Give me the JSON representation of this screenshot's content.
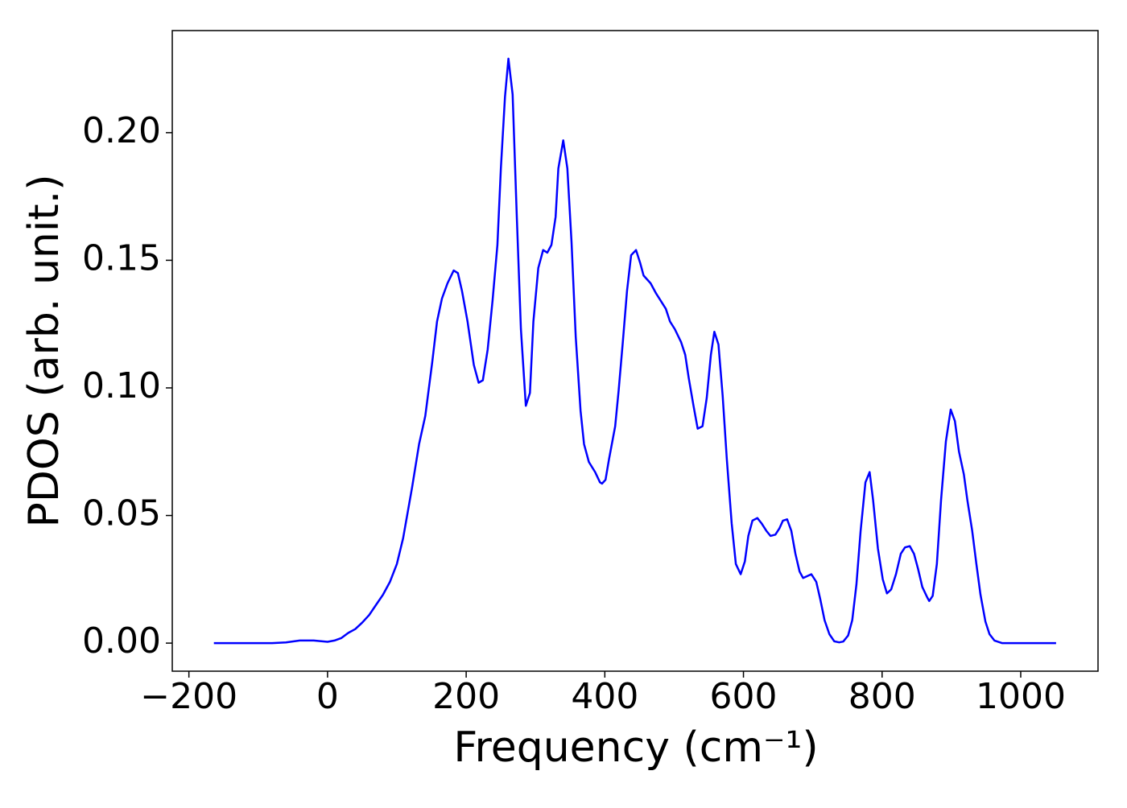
{
  "chart_data": {
    "type": "line",
    "xlabel": "Frequency (cm⁻¹)",
    "ylabel": "PDOS (arb. unit.)",
    "xlim": [
      -224,
      1111.5
    ],
    "ylim": [
      -0.011,
      0.24
    ],
    "xticks": [
      {
        "value": -200,
        "label": "−200"
      },
      0,
      200,
      400,
      600,
      800,
      1000
    ],
    "yticks": [
      {
        "value": 0,
        "label": "0.00"
      },
      {
        "value": 0.05,
        "label": "0.05"
      },
      {
        "value": 0.1,
        "label": "0.10"
      },
      {
        "value": 0.15,
        "label": "0.15"
      },
      {
        "value": 0.2,
        "label": "0.20"
      }
    ],
    "series": [
      {
        "color": "#0000ff",
        "x": [
          -164,
          -120,
          -80,
          -60,
          -40,
          -20,
          0,
          10,
          20,
          30,
          40,
          50,
          60,
          70,
          80,
          90,
          100,
          109,
          122,
          132,
          141,
          151,
          158,
          165,
          173,
          182,
          188,
          194,
          202,
          211,
          218,
          224,
          231,
          238,
          245,
          250,
          256,
          261,
          267,
          273,
          279,
          286,
          292,
          297,
          304,
          311,
          317,
          323,
          329,
          333,
          340,
          346,
          352,
          358,
          365,
          370,
          377,
          386,
          393,
          396,
          401,
          406,
          415,
          420,
          426,
          432,
          438,
          445,
          451,
          456,
          466,
          474,
          481,
          488,
          494,
          501,
          510,
          516,
          521,
          528,
          534,
          541,
          547,
          553,
          558,
          564,
          570,
          576,
          583,
          589,
          596,
          602,
          607,
          613,
          620,
          626,
          633,
          639,
          646,
          652,
          657,
          663,
          669,
          675,
          681,
          686,
          698,
          705,
          711,
          717,
          724,
          731,
          738,
          744,
          751,
          757,
          763,
          769,
          776,
          782,
          787,
          794,
          801,
          807,
          813,
          820,
          827,
          833,
          840,
          846,
          852,
          858,
          865,
          868,
          873,
          879,
          885,
          892,
          899,
          905,
          911,
          918,
          923,
          930,
          936,
          942,
          949,
          955,
          962,
          973,
          1051
        ],
        "values": [
          0,
          0,
          0,
          0.0003,
          0.001,
          0.001,
          0.0005,
          0.001,
          0.002,
          0.004,
          0.0055,
          0.008,
          0.011,
          0.015,
          0.019,
          0.024,
          0.031,
          0.041,
          0.061,
          0.078,
          0.089,
          0.11,
          0.126,
          0.135,
          0.141,
          0.146,
          0.145,
          0.138,
          0.126,
          0.109,
          0.102,
          0.103,
          0.115,
          0.134,
          0.156,
          0.186,
          0.214,
          0.229,
          0.215,
          0.167,
          0.123,
          0.093,
          0.098,
          0.126,
          0.147,
          0.154,
          0.153,
          0.156,
          0.167,
          0.186,
          0.197,
          0.186,
          0.157,
          0.12,
          0.091,
          0.078,
          0.071,
          0.067,
          0.063,
          0.0625,
          0.064,
          0.072,
          0.085,
          0.099,
          0.118,
          0.138,
          0.152,
          0.154,
          0.149,
          0.144,
          0.141,
          0.137,
          0.134,
          0.131,
          0.126,
          0.123,
          0.118,
          0.113,
          0.104,
          0.093,
          0.084,
          0.085,
          0.096,
          0.113,
          0.122,
          0.117,
          0.097,
          0.072,
          0.047,
          0.031,
          0.027,
          0.032,
          0.042,
          0.048,
          0.049,
          0.047,
          0.044,
          0.042,
          0.0425,
          0.045,
          0.048,
          0.0485,
          0.044,
          0.035,
          0.028,
          0.0255,
          0.027,
          0.024,
          0.017,
          0.009,
          0.0035,
          0.0007,
          0.0003,
          0.0006,
          0.003,
          0.009,
          0.023,
          0.044,
          0.063,
          0.067,
          0.056,
          0.037,
          0.025,
          0.0195,
          0.021,
          0.027,
          0.035,
          0.0375,
          0.038,
          0.035,
          0.029,
          0.022,
          0.018,
          0.0165,
          0.0185,
          0.031,
          0.056,
          0.079,
          0.0915,
          0.087,
          0.075,
          0.066,
          0.056,
          0.044,
          0.031,
          0.019,
          0.0085,
          0.0035,
          0.001,
          0,
          0
        ]
      }
    ]
  }
}
